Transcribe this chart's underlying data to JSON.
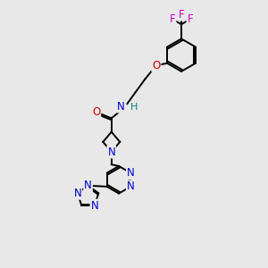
{
  "background_color": "#e8e8e8",
  "figsize": [
    3.0,
    3.0
  ],
  "dpi": 100,
  "atom_colors": {
    "C": "#000000",
    "N": "#0000cc",
    "O": "#cc0000",
    "F": "#cc00cc",
    "H": "#008080"
  },
  "bond_color": "#000000",
  "bond_width": 1.4,
  "font_size": 8.5,
  "xlim": [
    0,
    10
  ],
  "ylim": [
    0,
    10
  ]
}
